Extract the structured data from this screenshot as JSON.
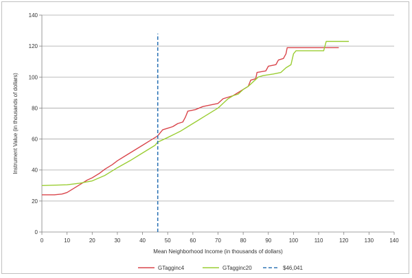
{
  "chart_data": {
    "type": "line",
    "title": "",
    "xlabel": "Mean Neighborhood Income (in thousands of dollars)",
    "ylabel": "Instrument Value (in thousands of dollars)",
    "xlim": [
      0,
      140
    ],
    "ylim": [
      0,
      140
    ],
    "xticks": [
      0,
      10,
      20,
      30,
      40,
      50,
      60,
      70,
      80,
      90,
      100,
      110,
      120,
      130,
      140
    ],
    "yticks": [
      0,
      20,
      40,
      60,
      80,
      100,
      120,
      140
    ],
    "grid": "horizontal",
    "legend_position": "bottom",
    "series": [
      {
        "name": "GTagginc4",
        "color": "#d9444a",
        "style": "solid",
        "points": [
          [
            0,
            24
          ],
          [
            5,
            24
          ],
          [
            8,
            24.5
          ],
          [
            10,
            25.5
          ],
          [
            12,
            27.5
          ],
          [
            15,
            30.5
          ],
          [
            18,
            33.5
          ],
          [
            20,
            35
          ],
          [
            23,
            38
          ],
          [
            25,
            40.5
          ],
          [
            28,
            43.5
          ],
          [
            30,
            46
          ],
          [
            33,
            49
          ],
          [
            36,
            52
          ],
          [
            40,
            56
          ],
          [
            43,
            59
          ],
          [
            45,
            61
          ],
          [
            46,
            62
          ],
          [
            47,
            64
          ],
          [
            48,
            66
          ],
          [
            50,
            67
          ],
          [
            52,
            68
          ],
          [
            54,
            70
          ],
          [
            56,
            71
          ],
          [
            57,
            74
          ],
          [
            58,
            78
          ],
          [
            61,
            79
          ],
          [
            64,
            81
          ],
          [
            67,
            82
          ],
          [
            70,
            83
          ],
          [
            72,
            86
          ],
          [
            74,
            87
          ],
          [
            76,
            88
          ],
          [
            78,
            90
          ],
          [
            80,
            92
          ],
          [
            82,
            94
          ],
          [
            83,
            98
          ],
          [
            85,
            99
          ],
          [
            85.5,
            103
          ],
          [
            89,
            104
          ],
          [
            90,
            107
          ],
          [
            93,
            108
          ],
          [
            94,
            111
          ],
          [
            96,
            112
          ],
          [
            97,
            115
          ],
          [
            97.5,
            119
          ],
          [
            118,
            119
          ]
        ]
      },
      {
        "name": "GTagginc20",
        "color": "#9acd32",
        "style": "solid",
        "points": [
          [
            0,
            30
          ],
          [
            10,
            30.5
          ],
          [
            15,
            31.5
          ],
          [
            20,
            33
          ],
          [
            25,
            36.5
          ],
          [
            30,
            41.5
          ],
          [
            35,
            46
          ],
          [
            40,
            51
          ],
          [
            45,
            56
          ],
          [
            46,
            58
          ],
          [
            50,
            61
          ],
          [
            55,
            65
          ],
          [
            58,
            68
          ],
          [
            62,
            72
          ],
          [
            65,
            75
          ],
          [
            68,
            78
          ],
          [
            70,
            80
          ],
          [
            72,
            83
          ],
          [
            74,
            86
          ],
          [
            76,
            88
          ],
          [
            78,
            89
          ],
          [
            80,
            92
          ],
          [
            82,
            94
          ],
          [
            84,
            97
          ],
          [
            86,
            100
          ],
          [
            88,
            101
          ],
          [
            92,
            102
          ],
          [
            95,
            103
          ],
          [
            97,
            106
          ],
          [
            99,
            108
          ],
          [
            100,
            115
          ],
          [
            101,
            117
          ],
          [
            112,
            117
          ],
          [
            113,
            123
          ],
          [
            122,
            123
          ]
        ]
      },
      {
        "name": "$46,041",
        "color": "#2e75b6",
        "style": "dashed",
        "points": [
          [
            46.041,
            0
          ],
          [
            46.041,
            128
          ]
        ]
      }
    ]
  }
}
